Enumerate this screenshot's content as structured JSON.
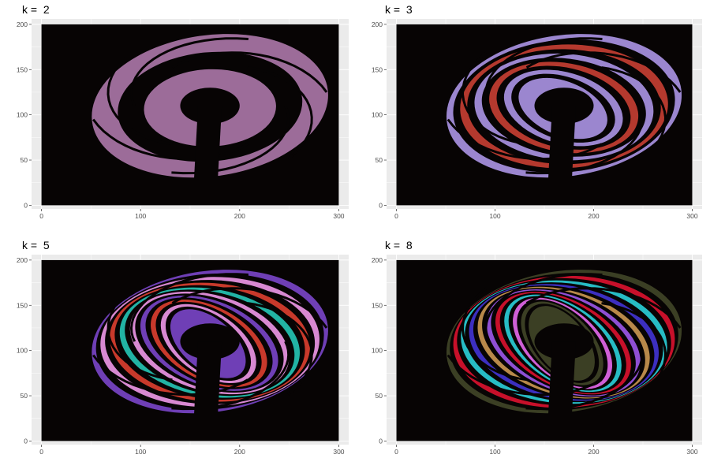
{
  "colors": {
    "panel_background": "#ebebeb",
    "grid_line": "#ffffff",
    "image_background": "#070404",
    "tick_label": "#4d4d4d",
    "tick_mark": "#333333"
  },
  "chart_data": [
    {
      "type": "heatmap",
      "title": "k =  2",
      "xlabel": "",
      "ylabel": "",
      "xlim": [
        -10,
        310
      ],
      "ylim": [
        -4,
        206
      ],
      "image_extent": {
        "x": [
          0,
          300
        ],
        "y": [
          0,
          200
        ]
      },
      "x_ticks": [
        0,
        100,
        200,
        300
      ],
      "y_ticks": [
        0,
        50,
        100,
        150,
        200
      ],
      "grid": true,
      "cluster_colors": [
        "#070404",
        "#9c6c99"
      ],
      "rings": [
        0
      ]
    },
    {
      "type": "heatmap",
      "title": "k =  3",
      "xlabel": "",
      "ylabel": "",
      "xlim": [
        -10,
        310
      ],
      "ylim": [
        -4,
        206
      ],
      "image_extent": {
        "x": [
          0,
          300
        ],
        "y": [
          0,
          200
        ]
      },
      "x_ticks": [
        0,
        100,
        200,
        300
      ],
      "y_ticks": [
        0,
        50,
        100,
        150,
        200
      ],
      "grid": true,
      "cluster_colors": [
        "#070404",
        "#9b86cf",
        "#b5392e"
      ],
      "rings": [
        0,
        1,
        0,
        1,
        0
      ]
    },
    {
      "type": "heatmap",
      "title": "k =  5",
      "xlabel": "",
      "ylabel": "",
      "xlim": [
        -10,
        310
      ],
      "ylim": [
        -4,
        206
      ],
      "image_extent": {
        "x": [
          0,
          300
        ],
        "y": [
          0,
          200
        ]
      },
      "x_ticks": [
        0,
        100,
        200,
        300
      ],
      "y_ticks": [
        0,
        50,
        100,
        150,
        200
      ],
      "grid": true,
      "cluster_colors": [
        "#070404",
        "#d889d2",
        "#c8392b",
        "#22b3a4",
        "#6f3fb6"
      ],
      "rings": [
        3,
        0,
        1,
        2,
        0,
        3,
        1,
        0
      ]
    },
    {
      "type": "heatmap",
      "title": "k =  8",
      "xlabel": "",
      "ylabel": "",
      "xlim": [
        -10,
        310
      ],
      "ylim": [
        -4,
        206
      ],
      "image_extent": {
        "x": [
          0,
          300
        ],
        "y": [
          0,
          200
        ]
      },
      "x_ticks": [
        0,
        100,
        200,
        300
      ],
      "y_ticks": [
        0,
        50,
        100,
        150,
        200
      ],
      "grid": true,
      "cluster_colors": [
        "#070404",
        "#cf5fd6",
        "#c7102a",
        "#27bcc4",
        "#3c2fc0",
        "#b8894a",
        "#8f4fd4",
        "#3b3f24"
      ],
      "rings": [
        6,
        1,
        2,
        3,
        4,
        5,
        1,
        2,
        0,
        6
      ]
    }
  ]
}
